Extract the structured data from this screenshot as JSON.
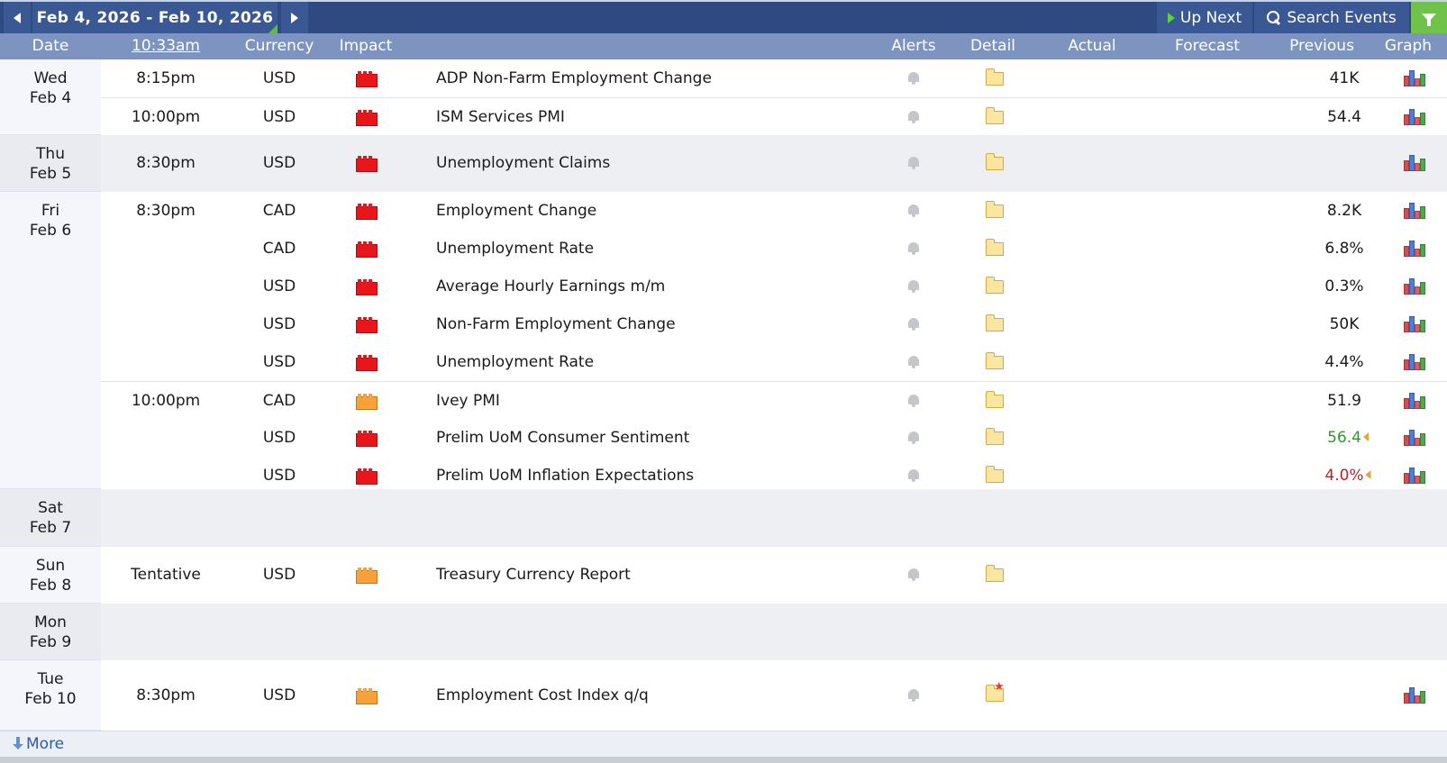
{
  "toolbar": {
    "date_range": "Feb 4, 2026 - Feb 10, 2026",
    "up_next": "Up Next",
    "search_events": "Search Events"
  },
  "header": {
    "date": "Date",
    "time": "10:33am",
    "currency": "Currency",
    "impact": "Impact",
    "alerts": "Alerts",
    "detail": "Detail",
    "actual": "Actual",
    "forecast": "Forecast",
    "previous": "Previous",
    "graph": "Graph"
  },
  "days": [
    {
      "day": "Wed",
      "date": "Feb 4"
    },
    {
      "day": "Thu",
      "date": "Feb 5"
    },
    {
      "day": "Fri",
      "date": "Feb 6"
    },
    {
      "day": "Sat",
      "date": "Feb 7"
    },
    {
      "day": "Sun",
      "date": "Feb 8"
    },
    {
      "day": "Mon",
      "date": "Feb 9"
    },
    {
      "day": "Tue",
      "date": "Feb 10"
    }
  ],
  "events": [
    {
      "time": "8:15pm",
      "currency": "USD",
      "impact": "high",
      "event": "ADP Non-Farm Employment Change",
      "actual": "",
      "forecast": "",
      "previous": "41K"
    },
    {
      "time": "10:00pm",
      "currency": "USD",
      "impact": "high",
      "event": "ISM Services PMI",
      "actual": "",
      "forecast": "",
      "previous": "54.4"
    },
    {
      "time": "8:30pm",
      "currency": "USD",
      "impact": "high",
      "event": "Unemployment Claims",
      "actual": "",
      "forecast": "",
      "previous": ""
    },
    {
      "time": "8:30pm",
      "currency": "CAD",
      "impact": "high",
      "event": "Employment Change",
      "actual": "",
      "forecast": "",
      "previous": "8.2K"
    },
    {
      "time": "",
      "currency": "CAD",
      "impact": "high",
      "event": "Unemployment Rate",
      "actual": "",
      "forecast": "",
      "previous": "6.8%"
    },
    {
      "time": "",
      "currency": "USD",
      "impact": "high",
      "event": "Average Hourly Earnings m/m",
      "actual": "",
      "forecast": "",
      "previous": "0.3%"
    },
    {
      "time": "",
      "currency": "USD",
      "impact": "high",
      "event": "Non-Farm Employment Change",
      "actual": "",
      "forecast": "",
      "previous": "50K"
    },
    {
      "time": "",
      "currency": "USD",
      "impact": "high",
      "event": "Unemployment Rate",
      "actual": "",
      "forecast": "",
      "previous": "4.4%"
    },
    {
      "time": "10:00pm",
      "currency": "CAD",
      "impact": "medium",
      "event": "Ivey PMI",
      "actual": "",
      "forecast": "",
      "previous": "51.9"
    },
    {
      "time": "",
      "currency": "USD",
      "impact": "high",
      "event": "Prelim UoM Consumer Sentiment",
      "actual": "",
      "forecast": "",
      "previous": "56.4"
    },
    {
      "time": "",
      "currency": "USD",
      "impact": "high",
      "event": "Prelim UoM Inflation Expectations",
      "actual": "",
      "forecast": "",
      "previous": "4.0%"
    },
    {
      "time": "Tentative",
      "currency": "USD",
      "impact": "medium",
      "event": "Treasury Currency Report",
      "actual": "",
      "forecast": "",
      "previous": ""
    },
    {
      "time": "8:30pm",
      "currency": "USD",
      "impact": "medium",
      "event": "Employment Cost Index q/q",
      "actual": "",
      "forecast": "",
      "previous": ""
    }
  ],
  "footer": {
    "more": "More"
  },
  "colors": {
    "toolbar_bg": "#2e4a80",
    "header_bg": "#7d94c1",
    "impact_high": "#e8161b",
    "impact_medium": "#f6a13a",
    "previous_better": "#2e9b2e",
    "previous_worse": "#c21f1f",
    "filter_button": "#6fc24a"
  }
}
